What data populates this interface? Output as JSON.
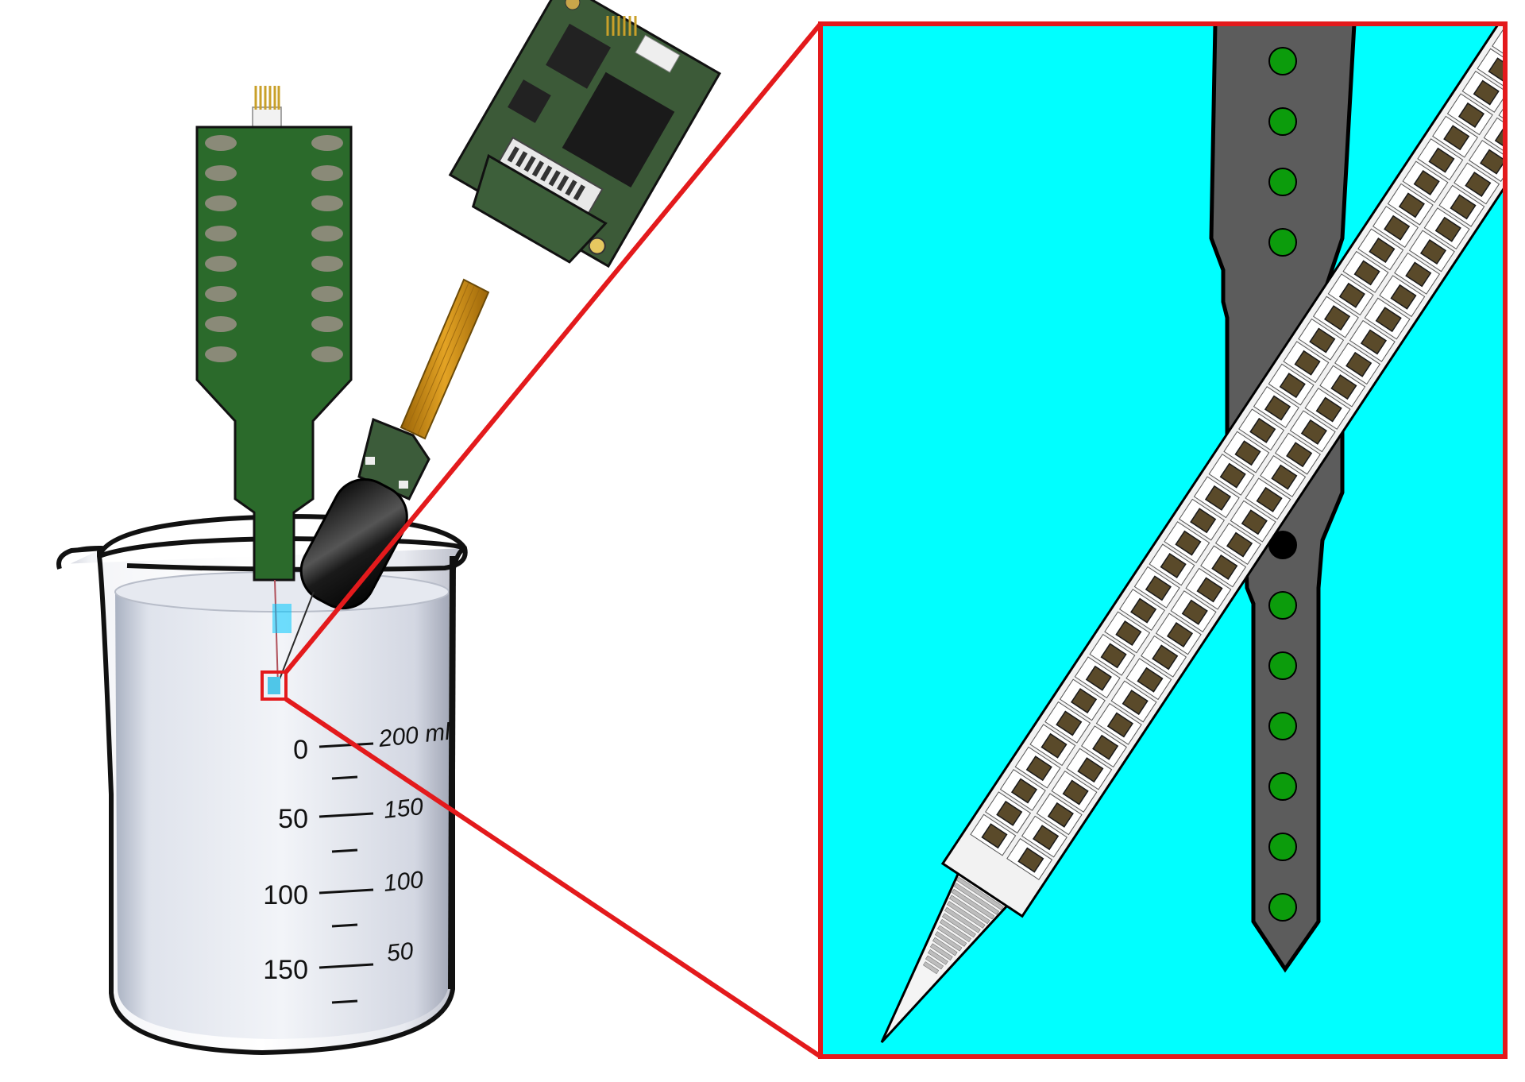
{
  "beaker": {
    "left_scale": [
      "0",
      "50",
      "100",
      "150"
    ],
    "right_scale": [
      "200 ml",
      "150",
      "100",
      "50"
    ]
  },
  "colors": {
    "zoom_frame": "#e31a1c",
    "zoom_background": "#00ffff",
    "pcb_green": "#2d6b2d",
    "headstage_green": "#3c5c3a",
    "shank_gray": "#5c5c5c",
    "contact_green": "#0c9c0c",
    "contact_red": "#ff0000",
    "contact_black": "#000000",
    "flex_cable": "#c98a12"
  },
  "icons": [
    "beaker-icon",
    "probe-board-icon",
    "headstage-board-icon"
  ]
}
